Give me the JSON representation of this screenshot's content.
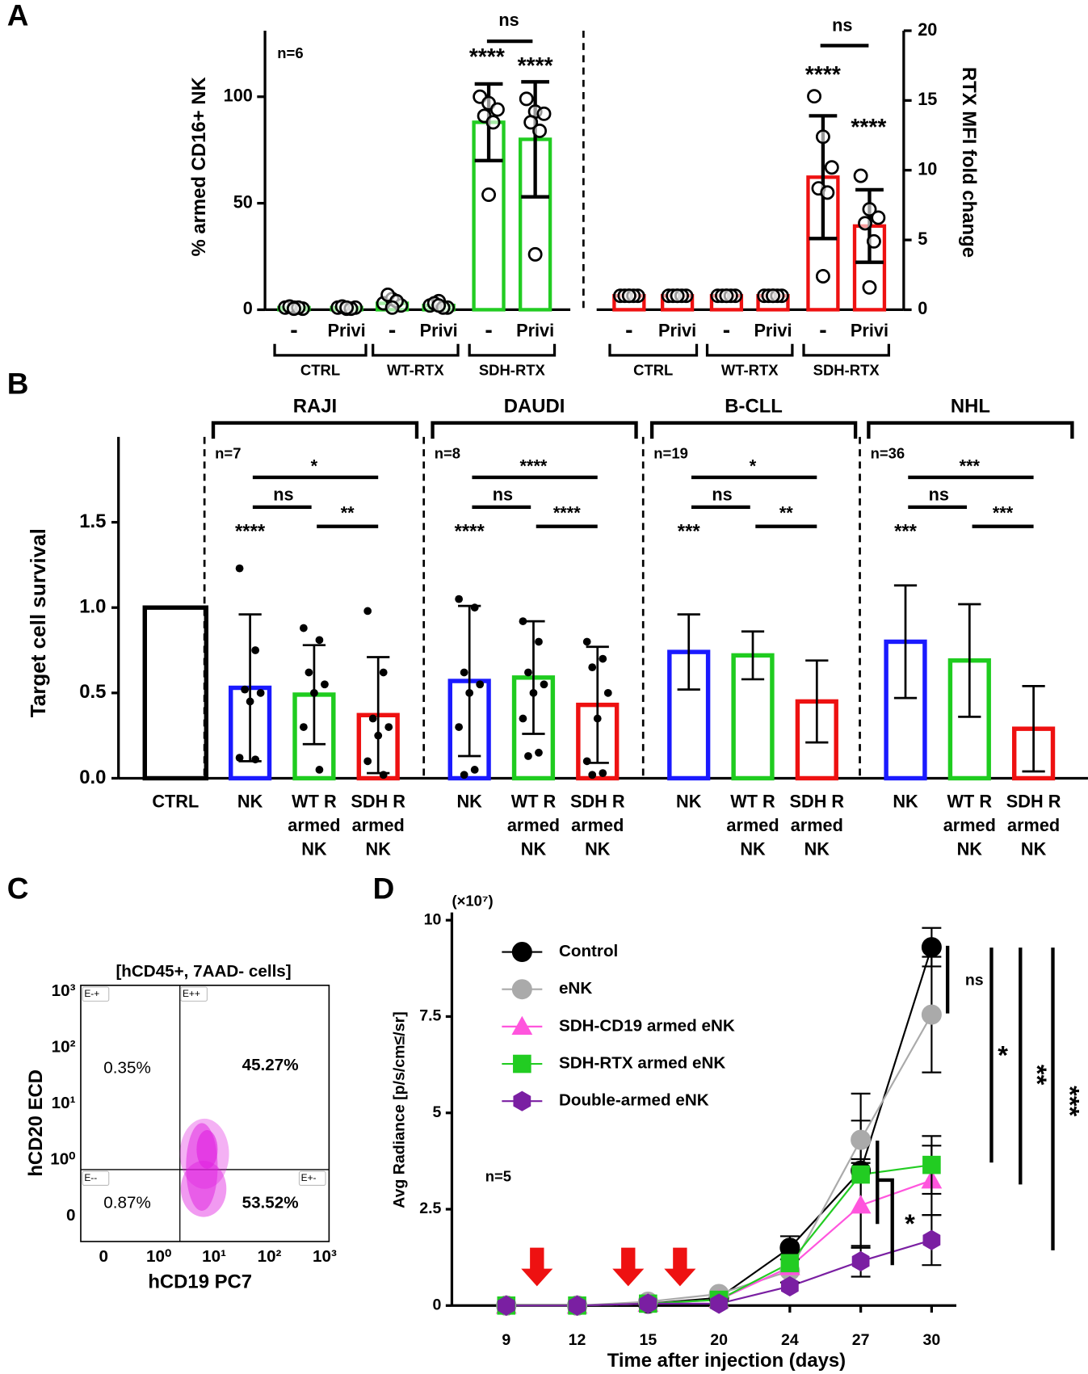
{
  "chart_data": [
    {
      "type": "bar",
      "label": "A",
      "annotation": "n=6",
      "ylabel": "% armed CD16+ NK",
      "y2label": "RTX MFI fold change",
      "ylim": [
        0,
        131
      ],
      "yticks": [
        0,
        50,
        100
      ],
      "y2lim": [
        0,
        20
      ],
      "y2ticks": [
        0,
        5,
        10,
        15,
        20
      ],
      "categories": [
        "-",
        "Privi",
        "-",
        "Privi",
        "-",
        "Privi"
      ],
      "groups": [
        "CTRL",
        "WT-RTX",
        "SDH-RTX"
      ],
      "series": [
        {
          "color": "#22cc22",
          "values": [
            1,
            1,
            3,
            2,
            88,
            80
          ],
          "errors": [
            null,
            null,
            null,
            null,
            18,
            27
          ],
          "significance": [
            "ns",
            "****",
            "****"
          ],
          "points": [
            [
              1,
              1,
              0.5,
              1.5,
              1,
              0.5
            ],
            [
              1,
              0.5,
              1,
              1.5,
              0.5,
              1
            ],
            [
              3,
              5,
              2,
              7,
              4,
              1
            ],
            [
              2,
              4,
              1,
              3,
              1,
              2
            ],
            [
              100,
              97,
              94,
              91,
              88,
              54
            ],
            [
              99,
              93,
              92,
              88,
              84,
              26
            ]
          ]
        },
        {
          "axis": "y2",
          "color": "#ee1111",
          "values": [
            1,
            1,
            1,
            1,
            9.5,
            6
          ],
          "errors": [
            null,
            null,
            null,
            null,
            4.4,
            2.6
          ],
          "significance": [
            "ns",
            "****",
            "****"
          ],
          "points": [
            [
              1,
              1,
              1,
              1,
              1,
              1
            ],
            [
              1,
              1,
              1,
              1,
              1,
              1
            ],
            [
              1,
              1,
              1,
              1,
              1,
              1
            ],
            [
              1,
              1,
              1,
              1,
              1,
              1
            ],
            [
              15.3,
              12.4,
              10.2,
              8.7,
              8.4,
              2.4
            ],
            [
              9.6,
              7.2,
              6.6,
              6.2,
              4.9,
              1.6
            ]
          ]
        }
      ]
    },
    {
      "type": "bar",
      "label": "B",
      "ylabel": "Target cell survival",
      "ylim": [
        0,
        2
      ],
      "yticks": [
        {
          "value": 0,
          "label": "0.0"
        },
        0.5,
        {
          "value": 1,
          "label": "1.0"
        },
        1.5
      ],
      "control": {
        "label": "CTRL",
        "value": 1,
        "color": "#000000"
      },
      "categories": [
        [
          "NK"
        ],
        [
          "WT R",
          "armed",
          "NK"
        ],
        [
          "SDH R",
          "armed",
          "NK"
        ]
      ],
      "colors": [
        "#1a1aff",
        "#1fcc1f",
        "#ee1111"
      ],
      "groups": [
        {
          "name": "RAJI",
          "n": "n=7",
          "annotations": [
            "*",
            "ns",
            "**",
            "****"
          ],
          "values": [
            0.53,
            0.49,
            0.37
          ],
          "errors": [
            0.43,
            0.29,
            0.34
          ],
          "points": [
            [
              1.23,
              0.75,
              0.52,
              0.5,
              0.45,
              0.12,
              0.11
            ],
            [
              0.88,
              0.81,
              0.62,
              0.55,
              0.5,
              0.3,
              0.05
            ],
            [
              0.98,
              0.62,
              0.35,
              0.3,
              0.25,
              0.1,
              0.02
            ]
          ]
        },
        {
          "name": "DAUDI",
          "n": "n=8",
          "annotations": [
            "****",
            "ns",
            "****",
            "****"
          ],
          "values": [
            0.57,
            0.59,
            0.43
          ],
          "errors": [
            0.44,
            0.33,
            0.34
          ],
          "points": [
            [
              1.05,
              1,
              0.62,
              0.55,
              0.5,
              0.3,
              0.05,
              0.02
            ],
            [
              0.92,
              0.8,
              0.62,
              0.55,
              0.5,
              0.35,
              0.15,
              0.13
            ],
            [
              0.8,
              0.7,
              0.65,
              0.5,
              0.35,
              0.1,
              0.03,
              0.02
            ]
          ]
        },
        {
          "name": "B-CLL",
          "n": "n=19",
          "annotations": [
            "*",
            "ns",
            "**",
            "***"
          ],
          "values": [
            0.74,
            0.72,
            0.45
          ],
          "errors": [
            0.22,
            0.14,
            0.24
          ]
        },
        {
          "name": "NHL",
          "n": "n=36",
          "annotations": [
            "***",
            "ns",
            "***",
            "***"
          ],
          "values": [
            0.8,
            0.69,
            0.29
          ],
          "errors": [
            0.33,
            0.33,
            0.25
          ]
        }
      ]
    },
    {
      "type": "density",
      "label": "C",
      "title": "[hCD45+, 7AAD- cells]",
      "xlabel": "hCD19 PC7",
      "ylabel": "hCD20 ECD",
      "xtick_labels": [
        "0",
        "10⁰",
        "10¹",
        "10²",
        "10³"
      ],
      "ytick_labels": [
        "10³",
        "10²",
        "10¹",
        "10⁰",
        "0"
      ],
      "gates": [
        "E-+",
        "E++",
        "E--",
        "E+-"
      ],
      "percentages": [
        "0.35%",
        "45.27%",
        "0.87%",
        "53.52%"
      ]
    },
    {
      "type": "line",
      "label": "D",
      "scale_note": "(×10⁷)",
      "annotation": "n=5",
      "xlabel": "Time after injection (days)",
      "ylabel": "Avg Radiance [p/s/cm≤/sr]",
      "categories": [
        "9",
        "12",
        "15",
        "20",
        "24",
        "27",
        "30"
      ],
      "ylim": [
        0,
        10.2
      ],
      "yticks": [
        0,
        2.5,
        5,
        7.5,
        10
      ],
      "significance": [
        "ns",
        "*",
        "**",
        "***",
        "*"
      ],
      "series": [
        {
          "name": "Control",
          "color": "#000000",
          "marker": "circle",
          "values": [
            0,
            0,
            0.05,
            0.2,
            1.5,
            3.5,
            9.3
          ],
          "errors": [
            null,
            null,
            null,
            null,
            0.3,
            2,
            0.5
          ]
        },
        {
          "name": "eNK",
          "color": "#aaaaaa",
          "marker": "circle",
          "values": [
            0,
            0,
            0.1,
            0.3,
            0.9,
            4.3,
            7.55
          ],
          "errors": [
            null,
            null,
            null,
            null,
            0.3,
            0.5,
            1.5
          ]
        },
        {
          "name": "SDH-CD19 armed eNK",
          "color": "#ff55dd",
          "marker": "triangle",
          "values": [
            0,
            0,
            0.05,
            0.15,
            1,
            2.6,
            3.25
          ],
          "errors": [
            null,
            null,
            null,
            null,
            null,
            1.1,
            0.9
          ]
        },
        {
          "name": "SDH-RTX armed eNK",
          "color": "#22cc22",
          "marker": "square",
          "values": [
            0,
            0,
            0.05,
            0.15,
            1.1,
            3.4,
            3.65
          ],
          "errors": [
            null,
            null,
            null,
            null,
            null,
            null,
            0.75
          ]
        },
        {
          "name": "Double-armed eNK",
          "color": "#7a1fa2",
          "marker": "hexagon",
          "values": [
            0,
            0,
            0.05,
            0.05,
            0.5,
            1.15,
            1.7
          ],
          "errors": [
            null,
            null,
            null,
            null,
            null,
            0.4,
            0.65
          ]
        }
      ]
    }
  ]
}
